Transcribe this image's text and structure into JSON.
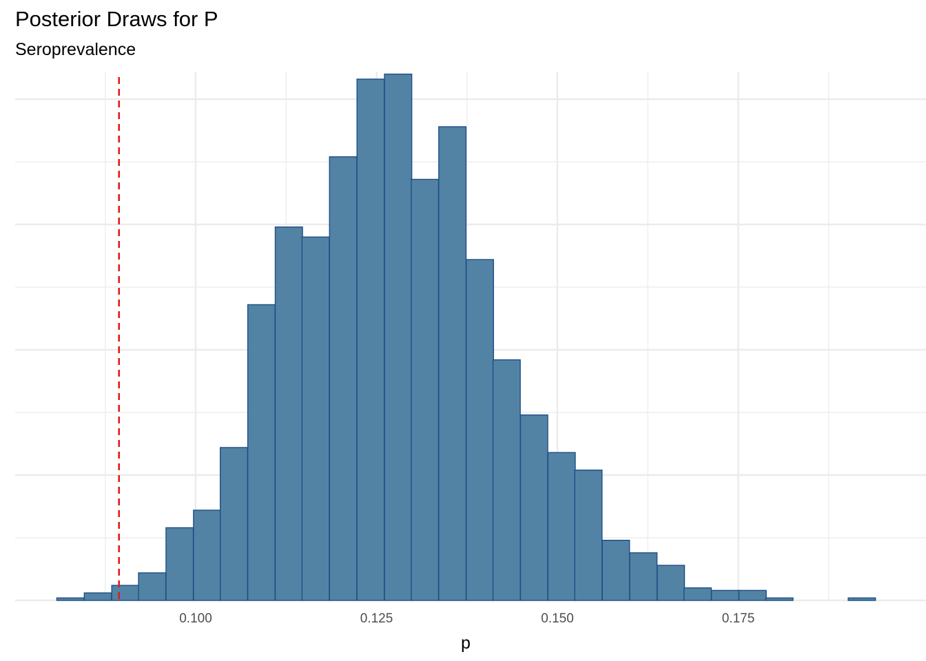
{
  "chart_data": {
    "type": "bar",
    "title": "Posterior Draws for P",
    "subtitle": "Seroprevalence",
    "xlabel": "p",
    "ylabel": "",
    "x_ticks": [
      0.1,
      0.125,
      0.15,
      0.175
    ],
    "x_tick_labels": [
      "0.100",
      "0.125",
      "0.150",
      "0.175"
    ],
    "xlim": [
      0.0785,
      0.1945
    ],
    "ylim": [
      0,
      840
    ],
    "y_gridlines": [
      0,
      100,
      200,
      300,
      400,
      500,
      600,
      700,
      800
    ],
    "y_tick_labels_shown": false,
    "grid": true,
    "bin_width": 0.00377,
    "bins": [
      {
        "x_start": 0.0808,
        "count": 4
      },
      {
        "x_start": 0.0846,
        "count": 12
      },
      {
        "x_start": 0.0884,
        "count": 24
      },
      {
        "x_start": 0.0921,
        "count": 44
      },
      {
        "x_start": 0.0959,
        "count": 116
      },
      {
        "x_start": 0.0997,
        "count": 144
      },
      {
        "x_start": 0.1034,
        "count": 244
      },
      {
        "x_start": 0.1072,
        "count": 472
      },
      {
        "x_start": 0.111,
        "count": 596
      },
      {
        "x_start": 0.1147,
        "count": 580
      },
      {
        "x_start": 0.1185,
        "count": 708
      },
      {
        "x_start": 0.1223,
        "count": 832
      },
      {
        "x_start": 0.1261,
        "count": 840
      },
      {
        "x_start": 0.1298,
        "count": 672
      },
      {
        "x_start": 0.1336,
        "count": 756
      },
      {
        "x_start": 0.1374,
        "count": 544
      },
      {
        "x_start": 0.1411,
        "count": 384
      },
      {
        "x_start": 0.1449,
        "count": 296
      },
      {
        "x_start": 0.1487,
        "count": 236
      },
      {
        "x_start": 0.1524,
        "count": 208
      },
      {
        "x_start": 0.1562,
        "count": 96
      },
      {
        "x_start": 0.16,
        "count": 76
      },
      {
        "x_start": 0.1638,
        "count": 56
      },
      {
        "x_start": 0.1675,
        "count": 20
      },
      {
        "x_start": 0.1713,
        "count": 16
      },
      {
        "x_start": 0.1751,
        "count": 16
      },
      {
        "x_start": 0.1788,
        "count": 4
      },
      {
        "x_start": 0.1826,
        "count": 0
      },
      {
        "x_start": 0.1864,
        "count": 0
      },
      {
        "x_start": 0.1902,
        "count": 4
      }
    ],
    "reference_line": {
      "x": 0.0894,
      "style": "dashed"
    },
    "colors": {
      "bar_fill": "#5283a4",
      "bar_stroke": "#1f4e86",
      "reference_line": "#e41a1c",
      "grid": "#ebebeb",
      "tick_text": "#4d4d4d"
    }
  }
}
